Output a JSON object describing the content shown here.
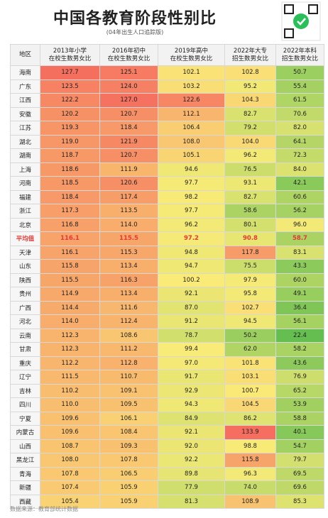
{
  "header": {
    "title": "中国各教育阶段性别比",
    "subtitle": "(04年出生人口追踪版)"
  },
  "table": {
    "columns": [
      [
        "地区"
      ],
      [
        "2013年小学",
        "在校生数男女比"
      ],
      [
        "2016年初中",
        "在校生数男女比"
      ],
      [
        "2019年高中",
        "在校生数男女比"
      ],
      [
        "2022年大专",
        "招生数男女比"
      ],
      [
        "2022年本科",
        "招生数男女比"
      ]
    ],
    "rows": [
      [
        "海南",
        "127.7",
        "125.1",
        "102.1",
        "102.8",
        "50.7"
      ],
      [
        "广东",
        "123.5",
        "124.0",
        "103.2",
        "95.2",
        "55.4"
      ],
      [
        "江西",
        "122.2",
        "127.0",
        "122.6",
        "104.3",
        "61.5"
      ],
      [
        "安徽",
        "120.2",
        "120.7",
        "112.1",
        "82.7",
        "70.6"
      ],
      [
        "江苏",
        "119.3",
        "118.4",
        "106.4",
        "79.2",
        "82.0"
      ],
      [
        "湖北",
        "119.0",
        "121.9",
        "108.0",
        "104.0",
        "64.1"
      ],
      [
        "湖南",
        "118.7",
        "120.7",
        "105.1",
        "96.2",
        "72.3"
      ],
      [
        "上海",
        "118.6",
        "111.9",
        "94.6",
        "76.5",
        "84.0"
      ],
      [
        "河南",
        "118.5",
        "120.6",
        "97.7",
        "93.1",
        "42.1"
      ],
      [
        "福建",
        "118.4",
        "117.4",
        "98.2",
        "82.7",
        "60.6"
      ],
      [
        "浙江",
        "117.3",
        "113.5",
        "97.7",
        "58.6",
        "56.2"
      ],
      [
        "北京",
        "116.8",
        "114.0",
        "96.2",
        "80.1",
        "96.0"
      ],
      [
        "平均值",
        "116.1",
        "115.5",
        "97.2",
        "90.8",
        "58.7"
      ],
      [
        "天津",
        "116.1",
        "115.3",
        "94.8",
        "117.8",
        "83.1"
      ],
      [
        "山东",
        "115.8",
        "113.4",
        "94.7",
        "75.5",
        "43.3"
      ],
      [
        "陕西",
        "115.5",
        "116.3",
        "100.2",
        "97.9",
        "60.0"
      ],
      [
        "贵州",
        "114.9",
        "113.4",
        "92.1",
        "95.8",
        "49.1"
      ],
      [
        "广西",
        "114.4",
        "111.6",
        "87.0",
        "102.7",
        "36.4"
      ],
      [
        "河北",
        "114.0",
        "112.4",
        "91.2",
        "94.5",
        "56.1"
      ],
      [
        "云南",
        "112.3",
        "108.6",
        "78.7",
        "50.2",
        "22.4"
      ],
      [
        "甘肃",
        "112.3",
        "111.2",
        "99.4",
        "62.0",
        "58.2"
      ],
      [
        "重庆",
        "112.2",
        "112.8",
        "97.0",
        "101.8",
        "43.6"
      ],
      [
        "辽宁",
        "111.5",
        "110.7",
        "91.7",
        "103.1",
        "76.9"
      ],
      [
        "吉林",
        "110.2",
        "109.1",
        "92.9",
        "100.7",
        "65.2"
      ],
      [
        "四川",
        "110.0",
        "109.5",
        "94.3",
        "104.5",
        "53.9"
      ],
      [
        "宁夏",
        "109.6",
        "106.1",
        "84.9",
        "86.2",
        "58.8"
      ],
      [
        "内蒙古",
        "109.6",
        "108.4",
        "92.1",
        "133.9",
        "40.1"
      ],
      [
        "山西",
        "108.7",
        "109.3",
        "92.0",
        "98.8",
        "54.7"
      ],
      [
        "黑龙江",
        "108.0",
        "107.8",
        "92.2",
        "115.8",
        "79.7"
      ],
      [
        "青海",
        "107.8",
        "106.5",
        "89.8",
        "96.3",
        "69.5"
      ],
      [
        "新疆",
        "107.4",
        "105.9",
        "77.9",
        "74.0",
        "69.6"
      ],
      [
        "西藏",
        "105.4",
        "105.9",
        "81.3",
        "108.9",
        "85.3"
      ]
    ]
  },
  "footer": {
    "source": "数据来源：教育部统计数据"
  }
}
